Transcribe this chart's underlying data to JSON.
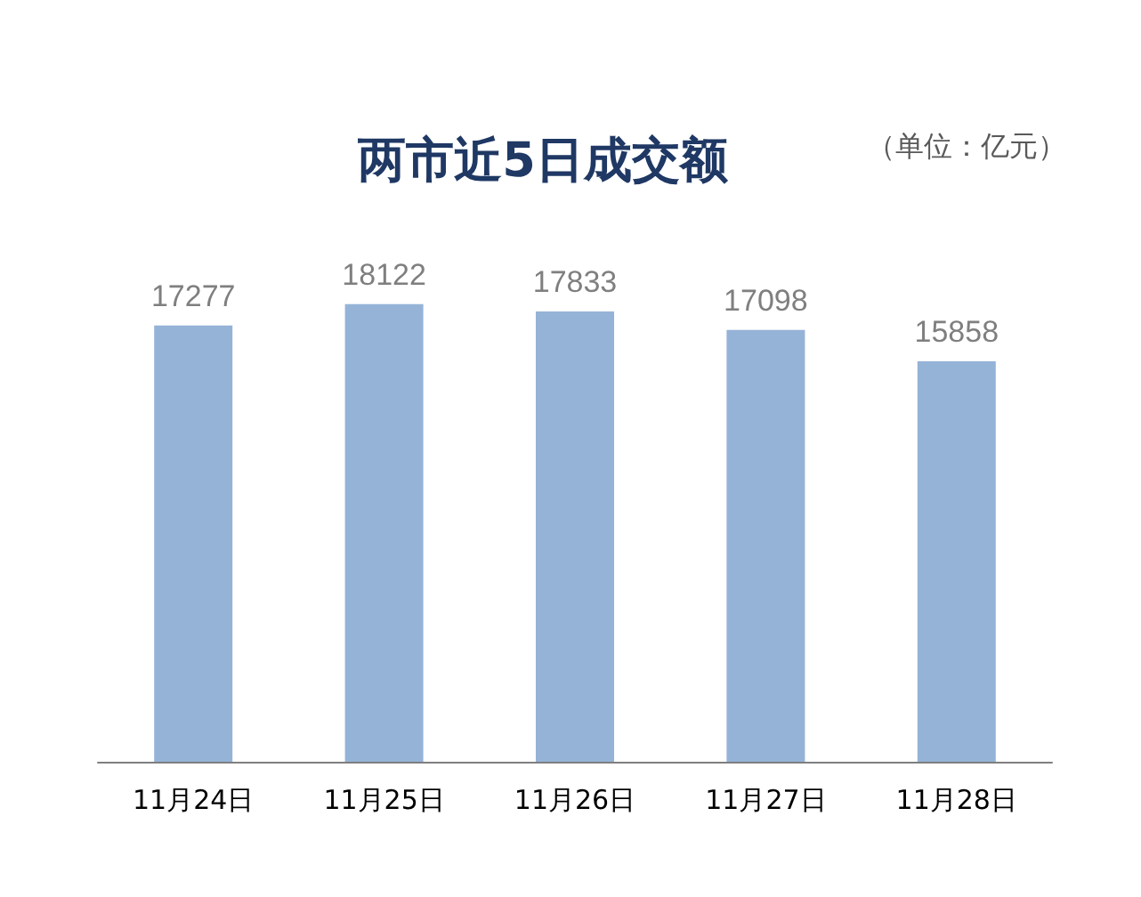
{
  "chart_data": {
    "type": "bar",
    "title": "两市近5日成交额",
    "annotations": [
      "（单位：亿元）"
    ],
    "categories": [
      "11月24日",
      "11月25日",
      "11月26日",
      "11月27日",
      "11月28日"
    ],
    "values": [
      17277,
      18122,
      17833,
      17098,
      15858
    ],
    "color": "#95b3d7",
    "data_labels": true
  }
}
